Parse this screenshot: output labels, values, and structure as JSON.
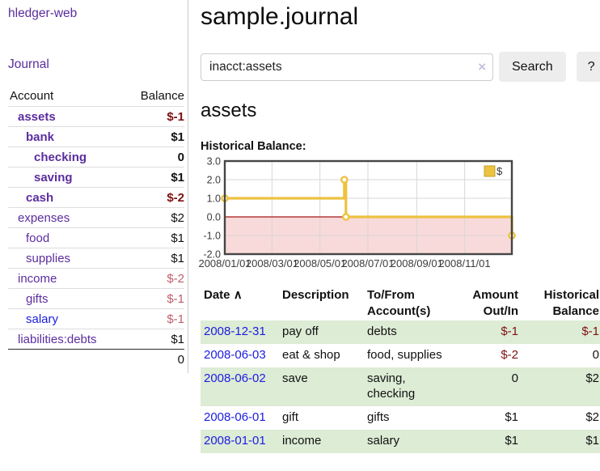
{
  "sidebar": {
    "app_title": "hledger-web",
    "journal_label": "Journal",
    "accounts_table": {
      "headers": {
        "account": "Account",
        "balance": "Balance"
      },
      "rows": [
        {
          "name": "assets",
          "indent": 1,
          "bold": true,
          "balance": "$-1",
          "neg": "strong",
          "link": "purple"
        },
        {
          "name": "bank",
          "indent": 2,
          "bold": true,
          "balance": "$1",
          "neg": "none",
          "link": "purple"
        },
        {
          "name": "checking",
          "indent": 3,
          "bold": true,
          "balance": "0",
          "neg": "none",
          "link": "purple"
        },
        {
          "name": "saving",
          "indent": 3,
          "bold": true,
          "balance": "$1",
          "neg": "none",
          "link": "purple"
        },
        {
          "name": "cash",
          "indent": 2,
          "bold": true,
          "balance": "$-2",
          "neg": "strong",
          "link": "purple"
        },
        {
          "name": "expenses",
          "indent": 1,
          "bold": false,
          "balance": "$2",
          "neg": "none",
          "link": "purple"
        },
        {
          "name": "food",
          "indent": 2,
          "bold": false,
          "balance": "$1",
          "neg": "none",
          "link": "purple"
        },
        {
          "name": "supplies",
          "indent": 2,
          "bold": false,
          "balance": "$1",
          "neg": "none",
          "link": "purple"
        },
        {
          "name": "income",
          "indent": 1,
          "bold": false,
          "balance": "$-2",
          "neg": "soft",
          "link": "purple"
        },
        {
          "name": "gifts",
          "indent": 2,
          "bold": false,
          "balance": "$-1",
          "neg": "soft",
          "link": "purple"
        },
        {
          "name": "salary",
          "indent": 2,
          "bold": false,
          "balance": "$-1",
          "neg": "soft",
          "link": "blue"
        },
        {
          "name": "liabilities:debts",
          "indent": 1,
          "bold": false,
          "balance": "$1",
          "neg": "none",
          "link": "purple"
        }
      ],
      "total": "0"
    }
  },
  "main": {
    "title": "sample.journal",
    "search": {
      "value": "inacct:assets",
      "clear_icon": "×",
      "search_button_label": "Search",
      "help_button_label": "?"
    },
    "account_heading": "assets",
    "chart_label": "Historical Balance:"
  },
  "chart_data": {
    "type": "line",
    "title": "Historical Balance",
    "step": true,
    "series": [
      {
        "name": "$",
        "color": "#edc240",
        "points": [
          [
            "2008-01-01",
            1
          ],
          [
            "2008-06-01",
            2
          ],
          [
            "2008-06-03",
            0
          ],
          [
            "2008-12-31",
            -1
          ]
        ]
      }
    ],
    "x_range": [
      "2008-01-01",
      "2008-12-31"
    ],
    "y_range": [
      -2,
      3
    ],
    "x_ticks": [
      {
        "date": "2008-01-01",
        "label": "2008/01/01"
      },
      {
        "date": "2008-03-01",
        "label": "2008/03/01"
      },
      {
        "date": "2008-05-01",
        "label": "2008/05/01"
      },
      {
        "date": "2008-07-01",
        "label": "2008/07/01"
      },
      {
        "date": "2008-09-01",
        "label": "2008/09/01"
      },
      {
        "date": "2008-11-01",
        "label": "2008/11/01"
      }
    ],
    "y_ticks": [
      {
        "v": 3,
        "label": "3.0"
      },
      {
        "v": 2,
        "label": "2.0"
      },
      {
        "v": 1,
        "label": "1.0"
      },
      {
        "v": 0,
        "label": "0.0"
      },
      {
        "v": -1,
        "label": "-1.0"
      },
      {
        "v": -2,
        "label": "-2.0"
      }
    ],
    "negative_region": {
      "from": 0,
      "to": -2,
      "fill": "#f9dada",
      "line_color": "#a31515"
    },
    "legend": {
      "label": "$",
      "position": "top-right"
    },
    "grid": true
  },
  "register_table": {
    "headers": {
      "date": "Date",
      "sort_arrow": "∧",
      "description": "Description",
      "accounts": "To/From Account(s)",
      "amount": "Amount Out/In",
      "balance": "Historical Balance"
    },
    "rows": [
      {
        "date": "2008-12-31",
        "description": "pay off",
        "accounts": "debts",
        "amount": "$-1",
        "amount_neg": true,
        "balance": "$-1",
        "balance_neg": true
      },
      {
        "date": "2008-06-03",
        "description": "eat & shop",
        "accounts": "food, supplies",
        "amount": "$-2",
        "amount_neg": true,
        "balance": "0",
        "balance_neg": false
      },
      {
        "date": "2008-06-02",
        "description": "save",
        "accounts": "saving, checking",
        "amount": "0",
        "amount_neg": false,
        "balance": "$2",
        "balance_neg": false
      },
      {
        "date": "2008-06-01",
        "description": "gift",
        "accounts": "gifts",
        "amount": "$1",
        "amount_neg": false,
        "balance": "$2",
        "balance_neg": false
      },
      {
        "date": "2008-01-01",
        "description": "income",
        "accounts": "salary",
        "amount": "$1",
        "amount_neg": false,
        "balance": "$1",
        "balance_neg": false
      }
    ]
  },
  "colors": {
    "link_purple": "#5b2d9e",
    "link_blue": "#1c1ce0",
    "negative_strong": "#7f1010",
    "negative_soft": "#bf5e6d",
    "row_highlight_green": "#ddecd5",
    "chart_line": "#edc240",
    "chart_negative_fill": "#f9dada"
  }
}
